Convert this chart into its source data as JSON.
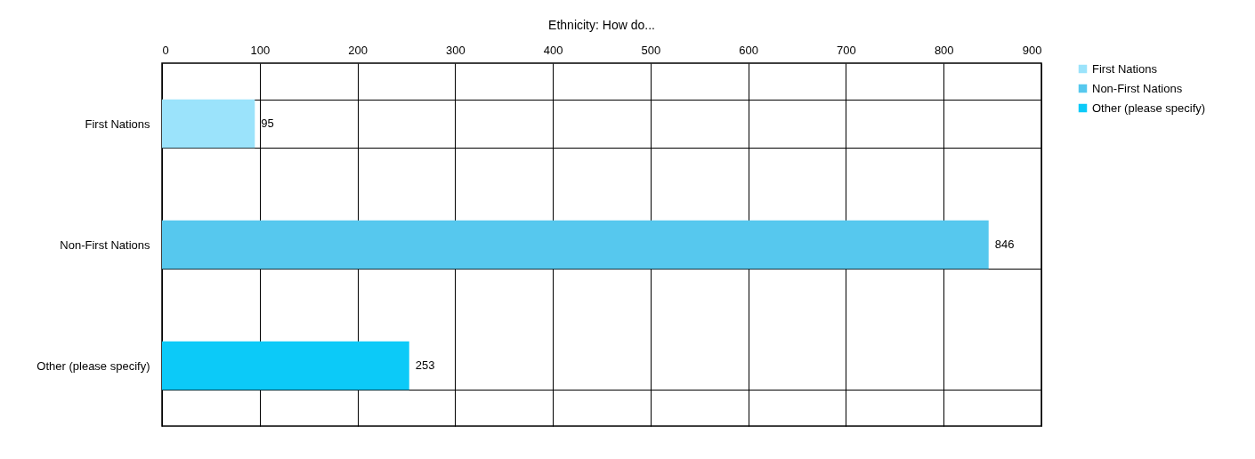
{
  "chart_data": {
    "type": "bar",
    "orientation": "horizontal",
    "title": "Ethnicity: How do...",
    "categories": [
      "First Nations",
      "Non-First Nations",
      "Other (please specify)"
    ],
    "series": [
      {
        "name": "First Nations",
        "color": "#9be3fb",
        "values": [
          95,
          null,
          null
        ]
      },
      {
        "name": "Non-First Nations",
        "color": "#56c8ee",
        "values": [
          null,
          846,
          null
        ]
      },
      {
        "name": "Other (please specify)",
        "color": "#0ccaf8",
        "values": [
          null,
          null,
          253
        ]
      }
    ],
    "xlim": [
      0,
      900
    ],
    "xticks": [
      0,
      100,
      200,
      300,
      400,
      500,
      600,
      700,
      800,
      900
    ],
    "grid": true,
    "legend": "right",
    "data_labels": true
  }
}
